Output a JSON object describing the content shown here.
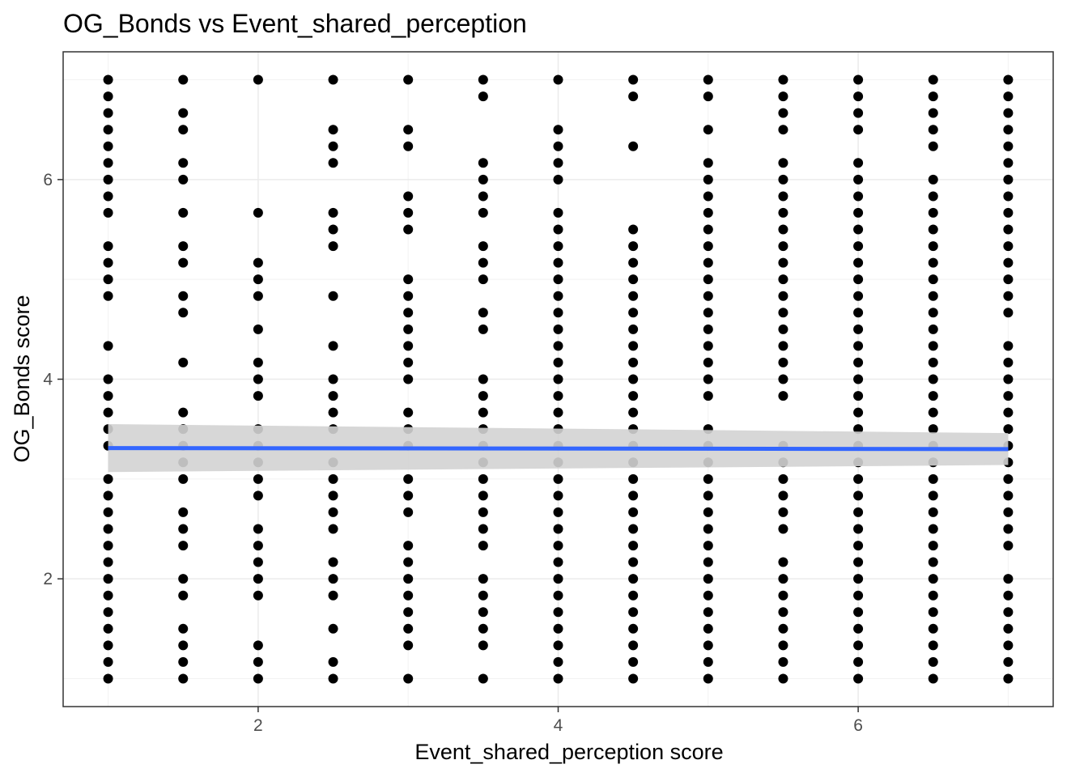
{
  "chart_data": {
    "type": "scatter",
    "title": "OG_Bonds vs Event_shared_perception",
    "xlabel": "Event_shared_perception score",
    "ylabel": "OG_Bonds score",
    "xlim": [
      0.7,
      7.3
    ],
    "ylim": [
      0.72,
      7.28
    ],
    "x_ticks": [
      2,
      4,
      6
    ],
    "y_ticks": [
      2,
      4,
      6
    ],
    "grid": true,
    "theme": "bw",
    "point_color": "#000000",
    "trend": {
      "method": "lm",
      "color": "#3366ff",
      "ribbon_color": "#d3d3d3",
      "x": [
        1,
        7
      ],
      "y": [
        3.31,
        3.3
      ],
      "ci_lower": [
        3.07,
        3.14
      ],
      "ci_upper": [
        3.55,
        3.46
      ]
    },
    "columns": [
      {
        "x": 1.0,
        "y": [
          7.0,
          6.833,
          6.667,
          6.5,
          6.333,
          6.167,
          6.0,
          5.833,
          5.667,
          5.333,
          5.167,
          5.0,
          4.833,
          4.333,
          4.0,
          3.833,
          3.667,
          3.5,
          3.333,
          3.0,
          2.833,
          2.667,
          2.5,
          2.333,
          2.167,
          2.0,
          1.833,
          1.667,
          1.5,
          1.333,
          1.167,
          1.0
        ]
      },
      {
        "x": 1.5,
        "y": [
          7.0,
          6.667,
          6.5,
          6.167,
          6.0,
          5.667,
          5.333,
          5.167,
          4.833,
          4.667,
          4.167,
          3.667,
          3.5,
          3.333,
          3.167,
          3.0,
          2.667,
          2.5,
          2.333,
          2.0,
          1.833,
          1.5,
          1.333,
          1.167,
          1.0
        ]
      },
      {
        "x": 2.0,
        "y": [
          7.0,
          5.667,
          5.167,
          5.0,
          4.833,
          4.5,
          4.167,
          4.0,
          3.833,
          3.5,
          3.333,
          3.167,
          3.0,
          2.833,
          2.5,
          2.333,
          2.167,
          2.0,
          1.833,
          1.333,
          1.167,
          1.0
        ]
      },
      {
        "x": 2.5,
        "y": [
          7.0,
          6.5,
          6.333,
          6.167,
          5.667,
          5.5,
          5.333,
          4.833,
          4.333,
          4.0,
          3.833,
          3.667,
          3.5,
          3.167,
          3.0,
          2.833,
          2.667,
          2.5,
          2.167,
          2.0,
          1.833,
          1.5,
          1.167,
          1.0
        ]
      },
      {
        "x": 3.0,
        "y": [
          7.0,
          6.5,
          6.333,
          5.833,
          5.667,
          5.5,
          5.0,
          4.833,
          4.667,
          4.5,
          4.333,
          4.167,
          4.0,
          3.667,
          3.5,
          3.333,
          3.0,
          2.833,
          2.667,
          2.333,
          2.167,
          2.0,
          1.833,
          1.667,
          1.5,
          1.333,
          1.0
        ]
      },
      {
        "x": 3.5,
        "y": [
          7.0,
          6.833,
          6.167,
          6.0,
          5.833,
          5.667,
          5.333,
          5.167,
          5.0,
          4.667,
          4.5,
          4.0,
          3.833,
          3.667,
          3.5,
          3.333,
          3.167,
          3.0,
          2.833,
          2.667,
          2.5,
          2.333,
          2.0,
          1.833,
          1.667,
          1.5,
          1.333,
          1.0
        ]
      },
      {
        "x": 4.0,
        "y": [
          7.0,
          6.5,
          6.333,
          6.167,
          6.0,
          5.667,
          5.5,
          5.333,
          5.167,
          5.0,
          4.833,
          4.667,
          4.5,
          4.333,
          4.167,
          4.0,
          3.833,
          3.667,
          3.5,
          3.333,
          3.167,
          3.0,
          2.833,
          2.667,
          2.5,
          2.333,
          2.167,
          2.0,
          1.833,
          1.667,
          1.5,
          1.333,
          1.167,
          1.0
        ]
      },
      {
        "x": 4.5,
        "y": [
          7.0,
          6.833,
          6.333,
          5.5,
          5.333,
          5.167,
          5.0,
          4.833,
          4.667,
          4.5,
          4.333,
          4.167,
          4.0,
          3.833,
          3.667,
          3.5,
          3.333,
          3.167,
          3.0,
          2.833,
          2.667,
          2.5,
          2.333,
          2.167,
          2.0,
          1.833,
          1.667,
          1.5,
          1.333,
          1.167,
          1.0
        ]
      },
      {
        "x": 5.0,
        "y": [
          7.0,
          6.833,
          6.5,
          6.167,
          6.0,
          5.833,
          5.667,
          5.5,
          5.333,
          5.167,
          5.0,
          4.833,
          4.667,
          4.5,
          4.333,
          4.167,
          4.0,
          3.833,
          3.5,
          3.333,
          3.167,
          3.0,
          2.833,
          2.667,
          2.5,
          2.333,
          2.167,
          2.0,
          1.833,
          1.667,
          1.5,
          1.333,
          1.167,
          1.0
        ]
      },
      {
        "x": 5.5,
        "y": [
          7.0,
          6.833,
          6.667,
          6.5,
          6.167,
          6.0,
          5.833,
          5.667,
          5.5,
          5.333,
          5.167,
          5.0,
          4.833,
          4.667,
          4.5,
          4.333,
          4.167,
          4.0,
          3.833,
          3.333,
          3.167,
          3.0,
          2.833,
          2.667,
          2.5,
          2.167,
          2.0,
          1.833,
          1.667,
          1.5,
          1.333,
          1.167,
          1.0
        ]
      },
      {
        "x": 6.0,
        "y": [
          7.0,
          6.833,
          6.667,
          6.5,
          6.167,
          6.0,
          5.833,
          5.667,
          5.5,
          5.333,
          5.167,
          5.0,
          4.833,
          4.667,
          4.5,
          4.333,
          4.167,
          4.0,
          3.833,
          3.667,
          3.5,
          3.333,
          3.167,
          3.0,
          2.833,
          2.667,
          2.5,
          2.333,
          2.167,
          2.0,
          1.833,
          1.667,
          1.5,
          1.333,
          1.167,
          1.0
        ]
      },
      {
        "x": 6.5,
        "y": [
          7.0,
          6.833,
          6.667,
          6.5,
          6.333,
          6.0,
          5.833,
          5.667,
          5.5,
          5.333,
          5.167,
          5.0,
          4.833,
          4.667,
          4.5,
          4.333,
          4.167,
          4.0,
          3.833,
          3.667,
          3.5,
          3.333,
          3.167,
          3.0,
          2.833,
          2.667,
          2.5,
          2.333,
          2.167,
          2.0,
          1.833,
          1.667,
          1.5,
          1.333,
          1.167,
          1.0
        ]
      },
      {
        "x": 7.0,
        "y": [
          7.0,
          6.833,
          6.667,
          6.5,
          6.333,
          6.167,
          6.0,
          5.833,
          5.667,
          5.5,
          5.333,
          5.167,
          5.0,
          4.833,
          4.667,
          4.333,
          4.167,
          4.0,
          3.833,
          3.667,
          3.5,
          3.333,
          3.167,
          3.0,
          2.833,
          2.667,
          2.5,
          2.333,
          2.0,
          1.833,
          1.667,
          1.5,
          1.333,
          1.167,
          1.0
        ]
      }
    ]
  }
}
